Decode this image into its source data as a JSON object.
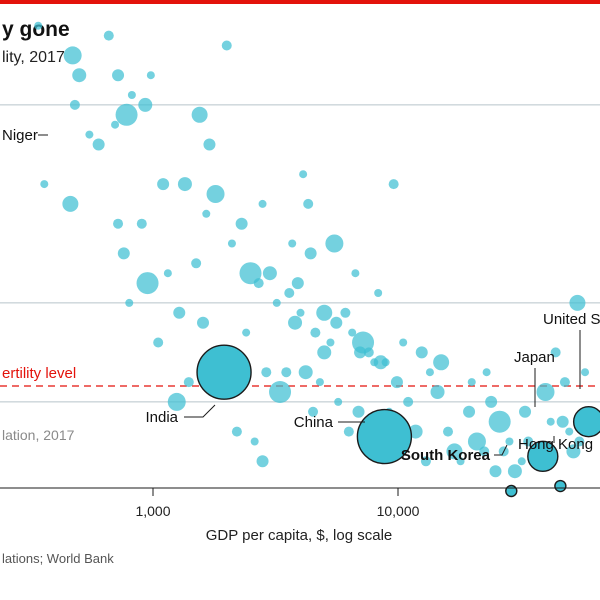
{
  "header": {
    "title": "y gone",
    "subtitle": "lity, 2017"
  },
  "colors": {
    "accent": "#e3120b",
    "bubble_fill": "#3ebfd2",
    "bubble_stroke": "#1b1b1b",
    "gridline": "#b8c4ca",
    "note_text": "#8a8a8a"
  },
  "chart_data": {
    "type": "scatter",
    "title": "y gone",
    "subtitle": "lity, 2017",
    "xlabel": "GDP per capita, $, log scale",
    "ylabel": "",
    "x_scale": "log",
    "xlim": [
      300,
      90000
    ],
    "ylim": [
      1.0,
      7.8
    ],
    "x_ticks": [
      {
        "value": 1000,
        "label": "1,000"
      },
      {
        "value": 10000,
        "label": "10,000"
      }
    ],
    "y_gridlines": [
      2,
      3,
      5,
      7
    ],
    "grid": true,
    "reference_line": {
      "value": 2.1,
      "label": "ertility level",
      "style": "dashed"
    },
    "size_note": "lation, 2017",
    "source": "lations; World Bank",
    "highlighted": [
      {
        "name": "Niger",
        "x": 390,
        "y": 7.2,
        "size": "small"
      },
      {
        "name": "India",
        "x": 1950,
        "y": 2.3,
        "size": "very large"
      },
      {
        "name": "China",
        "x": 8800,
        "y": 1.65,
        "size": "very large"
      },
      {
        "name": "Japan",
        "x": 39000,
        "y": 1.45,
        "size": "medium"
      },
      {
        "name": "United S",
        "x": 60000,
        "y": 1.8,
        "size": "medium"
      },
      {
        "name": "South Korea",
        "x": 29000,
        "y": 1.1,
        "size": "small"
      },
      {
        "name": "Hong Kong",
        "x": 46000,
        "y": 1.15,
        "size": "small"
      }
    ],
    "other_points": [
      [
        340,
        5.8
      ],
      [
        400,
        6.4
      ],
      [
        420,
        6.5
      ],
      [
        360,
        4.2
      ],
      [
        500,
        5.3
      ],
      [
        480,
        5.0
      ],
      [
        460,
        4.0
      ],
      [
        550,
        4.7
      ],
      [
        600,
        4.6
      ],
      [
        470,
        5.5
      ],
      [
        660,
        5.7
      ],
      [
        700,
        4.8
      ],
      [
        720,
        5.3
      ],
      [
        780,
        4.9
      ],
      [
        760,
        6.2
      ],
      [
        820,
        5.1
      ],
      [
        930,
        5.0
      ],
      [
        980,
        5.3
      ],
      [
        720,
        3.8
      ],
      [
        760,
        3.5
      ],
      [
        800,
        3.0
      ],
      [
        900,
        3.8
      ],
      [
        1100,
        4.2
      ],
      [
        1150,
        3.3
      ],
      [
        1350,
        4.2
      ],
      [
        1500,
        3.4
      ],
      [
        1550,
        4.9
      ],
      [
        1650,
        3.9
      ],
      [
        1700,
        4.6
      ],
      [
        1800,
        4.1
      ],
      [
        2000,
        5.6
      ],
      [
        2100,
        3.6
      ],
      [
        2300,
        3.8
      ],
      [
        2500,
        3.3
      ],
      [
        2700,
        3.2
      ],
      [
        2800,
        4.0
      ],
      [
        3000,
        3.3
      ],
      [
        3200,
        3.0
      ],
      [
        3600,
        3.1
      ],
      [
        3900,
        3.2
      ],
      [
        4100,
        4.3
      ],
      [
        4300,
        4.0
      ],
      [
        4400,
        3.5
      ],
      [
        4000,
        2.9
      ],
      [
        3800,
        2.8
      ],
      [
        4600,
        2.7
      ],
      [
        5000,
        2.9
      ],
      [
        5300,
        2.6
      ],
      [
        5600,
        2.8
      ],
      [
        5500,
        3.6
      ],
      [
        6100,
        2.9
      ],
      [
        6500,
        2.7
      ],
      [
        7000,
        2.5
      ],
      [
        7200,
        2.6
      ],
      [
        7600,
        2.5
      ],
      [
        8000,
        2.4
      ],
      [
        8500,
        2.4
      ],
      [
        8900,
        2.4
      ],
      [
        9600,
        4.2
      ],
      [
        9900,
        2.2
      ],
      [
        10500,
        2.6
      ],
      [
        11000,
        2.0
      ],
      [
        12500,
        2.5
      ],
      [
        13500,
        2.3
      ],
      [
        14500,
        2.1
      ],
      [
        16000,
        1.7
      ],
      [
        17000,
        1.5
      ],
      [
        18000,
        1.4
      ],
      [
        19500,
        1.9
      ],
      [
        21000,
        1.6
      ],
      [
        22500,
        1.5
      ],
      [
        23000,
        2.3
      ],
      [
        25000,
        1.3
      ],
      [
        26000,
        1.8
      ],
      [
        27000,
        1.5
      ],
      [
        28500,
        1.6
      ],
      [
        30000,
        1.3
      ],
      [
        32000,
        1.4
      ],
      [
        34000,
        1.6
      ],
      [
        36000,
        1.5
      ],
      [
        42000,
        1.8
      ],
      [
        44000,
        2.5
      ],
      [
        47000,
        1.8
      ],
      [
        50000,
        1.7
      ],
      [
        52000,
        1.5
      ],
      [
        55000,
        1.6
      ],
      [
        54000,
        3.0
      ],
      [
        58000,
        2.3
      ],
      [
        1950,
        2.5
      ],
      [
        1250,
        2.0
      ],
      [
        1400,
        2.2
      ],
      [
        2600,
        1.6
      ],
      [
        2800,
        1.4
      ],
      [
        3300,
        2.1
      ],
      [
        4500,
        1.9
      ],
      [
        4800,
        2.2
      ],
      [
        5000,
        2.5
      ],
      [
        5700,
        2.0
      ],
      [
        6300,
        1.7
      ],
      [
        1800,
        2.1
      ],
      [
        2400,
        2.7
      ],
      [
        3500,
        2.3
      ],
      [
        6900,
        1.9
      ],
      [
        7800,
        1.8
      ],
      [
        11800,
        1.7
      ],
      [
        2200,
        1.7
      ],
      [
        15000,
        2.4
      ],
      [
        20000,
        2.2
      ],
      [
        33000,
        1.9
      ],
      [
        40000,
        2.1
      ],
      [
        48000,
        2.2
      ],
      [
        3700,
        3.6
      ],
      [
        1600,
        2.8
      ],
      [
        950,
        3.2
      ],
      [
        1050,
        2.6
      ],
      [
        6700,
        3.3
      ],
      [
        4200,
        2.3
      ],
      [
        9200,
        1.9
      ],
      [
        2900,
        2.3
      ],
      [
        1280,
        2.9
      ],
      [
        8300,
        3.1
      ],
      [
        13000,
        1.4
      ],
      [
        24000,
        2.0
      ]
    ],
    "highlighted_point_sizes_note": "bubble area proportional to population"
  },
  "texts": {
    "tick_1000": "1,000",
    "tick_10000": "10,000",
    "xlabel": "GDP per capita, $, log scale",
    "ref_label": "ertility level",
    "size_note": "lation, 2017",
    "source": "lations; World Bank"
  }
}
